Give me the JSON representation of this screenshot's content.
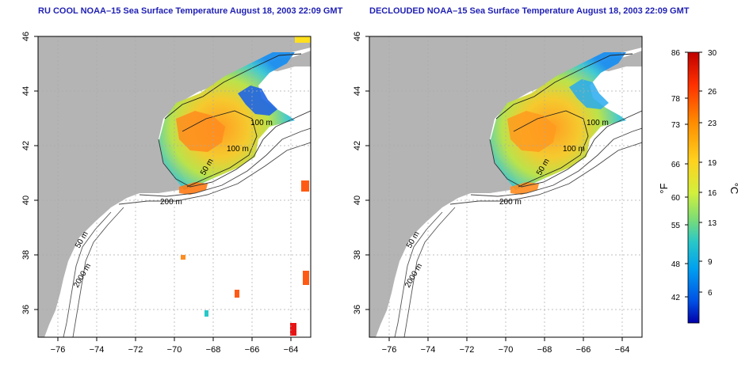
{
  "panels": [
    {
      "title": "RU COOL NOAA–15 Sea Surface Temperature August 18, 2003 22:09 GMT",
      "depth_labels": [
        "100 m",
        "100 m",
        "50 m",
        "200 m",
        "50 m",
        "2000 m"
      ]
    },
    {
      "title": "DECLOUDED NOAA–15 Sea Surface Temperature August 18, 2003 22:09 GMT",
      "depth_labels": [
        "100 m",
        "100 m",
        "50 m",
        "200 m",
        "50 m",
        "2000 m"
      ]
    }
  ],
  "axes": {
    "lon_ticks": [
      "−76",
      "−74",
      "−72",
      "−70",
      "−68",
      "−66",
      "−64"
    ],
    "lat_ticks": [
      "46",
      "44",
      "42",
      "40",
      "38",
      "36"
    ]
  },
  "colorbar": {
    "fahrenheit_label": "°F",
    "celsius_label": "°C",
    "fahrenheit_ticks": [
      "86",
      "78",
      "73",
      "66",
      "60",
      "55",
      "48",
      "42"
    ],
    "celsius_ticks": [
      "30",
      "26",
      "23",
      "19",
      "16",
      "13",
      "9",
      "6"
    ],
    "colors": [
      "#c00000",
      "#ff3000",
      "#ff8c00",
      "#ffd21e",
      "#d2f03c",
      "#78dc78",
      "#28c8c8",
      "#00a0f0",
      "#0050e6",
      "#0000aa"
    ]
  },
  "colors": {
    "land": "#b4b4b4",
    "ocean": "#ffffff",
    "grid": "#aaaaaa",
    "title": "#1f1fb4"
  }
}
